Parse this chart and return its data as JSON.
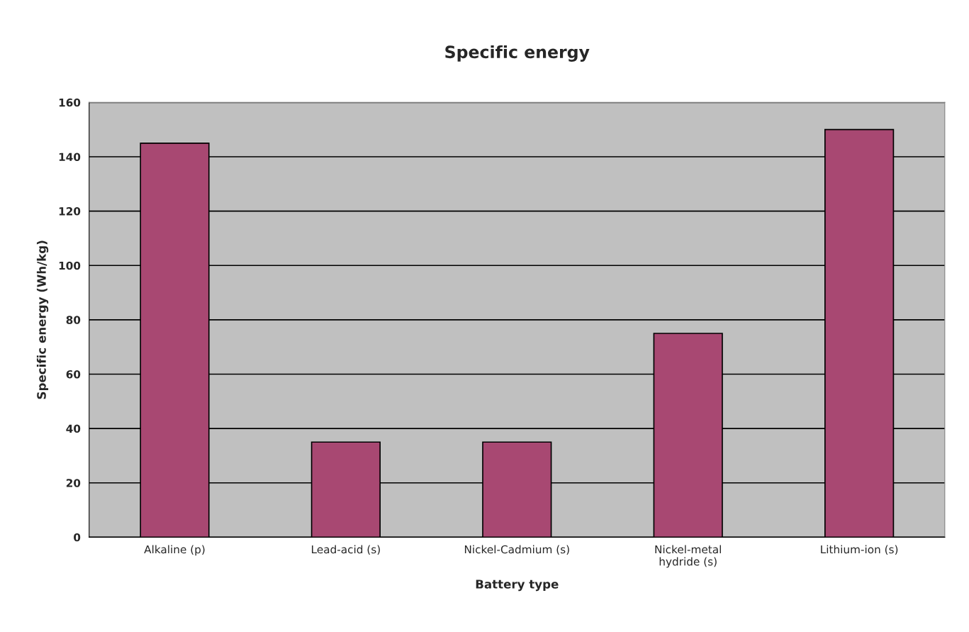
{
  "chart_data": {
    "type": "bar",
    "title": "Specific energy",
    "xlabel": "Battery type",
    "ylabel": "Specific energy (Wh/kg)",
    "categories": [
      "Alkaline (p)",
      "Lead-acid (s)",
      "Nickel-Cadmium (s)",
      "Nickel-metal\nhydride (s)",
      "Lithium-ion (s)"
    ],
    "values": [
      145,
      35,
      35,
      75,
      150
    ],
    "color": "#a84872",
    "ylim": [
      0,
      160
    ],
    "yticks": [
      0,
      20,
      40,
      60,
      80,
      100,
      120,
      140,
      160
    ],
    "grid": "y"
  }
}
